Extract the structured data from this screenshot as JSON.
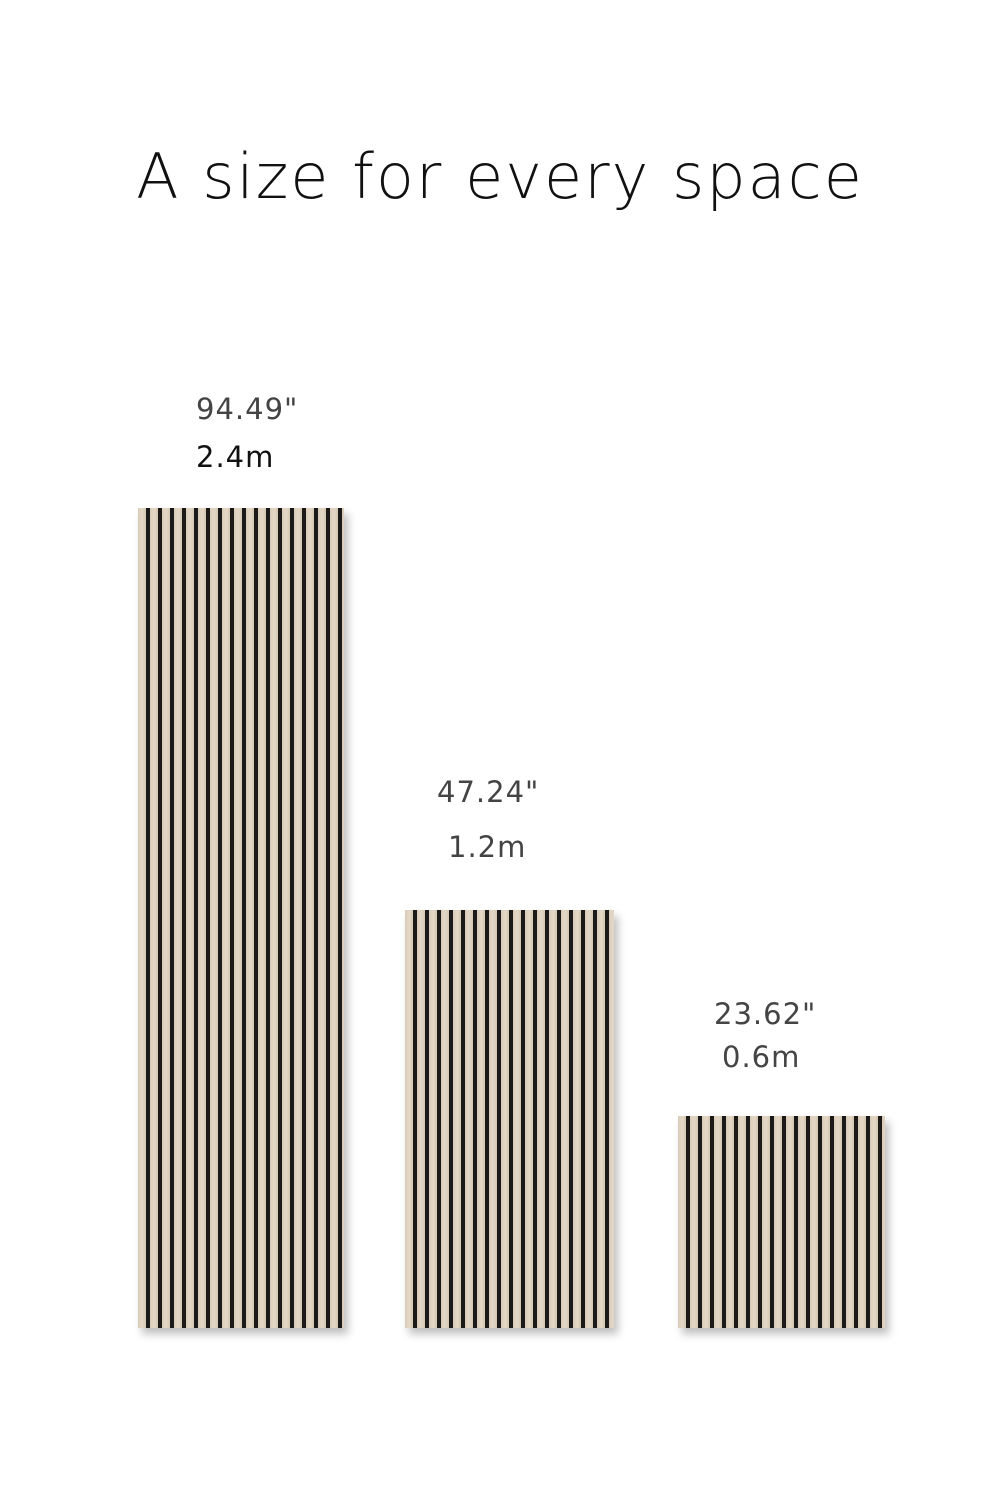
{
  "header": {
    "title": "A size for every space"
  },
  "panels": [
    {
      "imperial": "94.49\"",
      "metric": "2.4m"
    },
    {
      "imperial": "47.24\"",
      "metric": "1.2m"
    },
    {
      "imperial": "23.62\"",
      "metric": "0.6m"
    }
  ]
}
